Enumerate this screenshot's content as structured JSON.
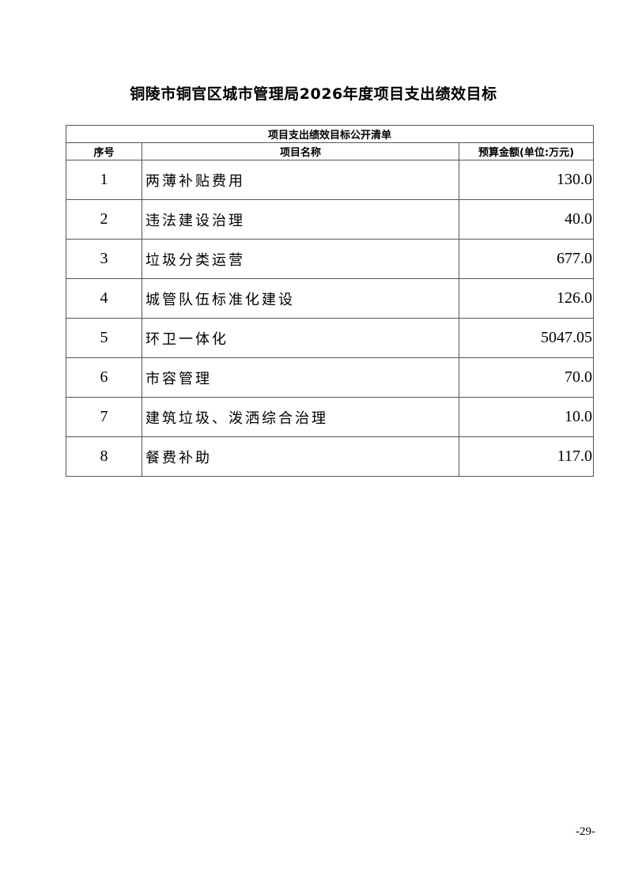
{
  "title": "铜陵市铜官区城市管理局2026年度项目支出绩效目标",
  "table": {
    "caption": "项目支出绩效目标公开清单",
    "headers": [
      "序号",
      "项目名称",
      "预算金额(单位:万元)"
    ],
    "rows": [
      {
        "no": "1",
        "name": "两薄补贴费用",
        "amount": "130.0"
      },
      {
        "no": "2",
        "name": "违法建设治理",
        "amount": "40.0"
      },
      {
        "no": "3",
        "name": "垃圾分类运营",
        "amount": "677.0"
      },
      {
        "no": "4",
        "name": "城管队伍标准化建设",
        "amount": "126.0"
      },
      {
        "no": "5",
        "name": "环卫一体化",
        "amount": "5047.05"
      },
      {
        "no": "6",
        "name": "市容管理",
        "amount": "70.0"
      },
      {
        "no": "7",
        "name": "建筑垃圾、泼洒综合治理",
        "amount": "10.0"
      },
      {
        "no": "8",
        "name": "餐费补助",
        "amount": "117.0"
      }
    ]
  },
  "page_number": "-29-"
}
